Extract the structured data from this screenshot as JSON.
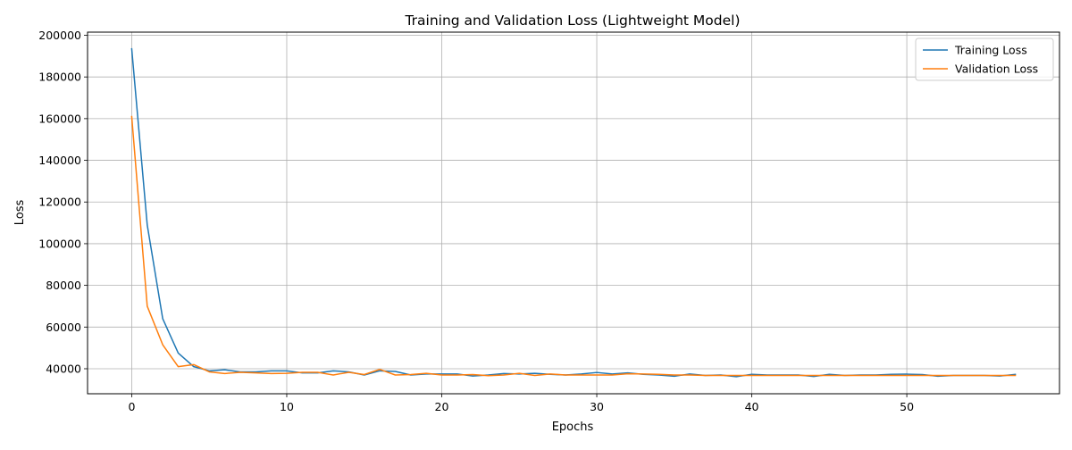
{
  "chart_data": {
    "type": "line",
    "title": "Training and Validation Loss (Lightweight Model)",
    "xlabel": "Epochs",
    "ylabel": "Loss",
    "xlim": [
      -2.85,
      59.85
    ],
    "ylim": [
      28000,
      201500
    ],
    "xticks": [
      0,
      10,
      20,
      30,
      40,
      50
    ],
    "yticks": [
      40000,
      60000,
      80000,
      100000,
      120000,
      140000,
      160000,
      180000,
      200000
    ],
    "grid": true,
    "legend_position": "top-right",
    "x": [
      0,
      1,
      2,
      3,
      4,
      5,
      6,
      7,
      8,
      9,
      10,
      11,
      12,
      13,
      14,
      15,
      16,
      17,
      18,
      19,
      20,
      21,
      22,
      23,
      24,
      25,
      26,
      27,
      28,
      29,
      30,
      31,
      32,
      33,
      34,
      35,
      36,
      37,
      38,
      39,
      40,
      41,
      42,
      43,
      44,
      45,
      46,
      47,
      48,
      49,
      50,
      51,
      52,
      53,
      54,
      55,
      56,
      57
    ],
    "series": [
      {
        "name": "Training Loss",
        "color": "#1f77b4",
        "values": [
          193500,
          109000,
          64000,
          47500,
          41000,
          39000,
          39500,
          38500,
          38500,
          39000,
          39000,
          38000,
          38000,
          39000,
          38500,
          37000,
          39000,
          38700,
          37000,
          37500,
          37500,
          37500,
          36500,
          37000,
          37700,
          37500,
          37800,
          37300,
          37000,
          37500,
          38200,
          37500,
          38000,
          37300,
          37000,
          36400,
          37500,
          36800,
          37000,
          36200,
          37300,
          37000,
          37000,
          37000,
          36300,
          37300,
          36800,
          37000,
          37000,
          37300,
          37400,
          37200,
          36400,
          36800,
          36800,
          36800,
          36500,
          37300
        ]
      },
      {
        "name": "Validation Loss",
        "color": "#ff7f0e",
        "values": [
          161000,
          70000,
          51500,
          41000,
          42000,
          38500,
          37700,
          38300,
          38000,
          37700,
          37800,
          38300,
          38300,
          37000,
          38300,
          37200,
          39700,
          37000,
          37200,
          37800,
          37000,
          37000,
          37200,
          36700,
          37000,
          37800,
          36800,
          37500,
          37000,
          37000,
          37000,
          37000,
          37600,
          37500,
          37300,
          37000,
          37000,
          36800,
          36800,
          36800,
          36800,
          36800,
          36800,
          36800,
          36800,
          36800,
          36800,
          36800,
          36800,
          36800,
          36800,
          36800,
          36800,
          36800,
          36800,
          36800,
          36800,
          36800
        ]
      }
    ]
  }
}
